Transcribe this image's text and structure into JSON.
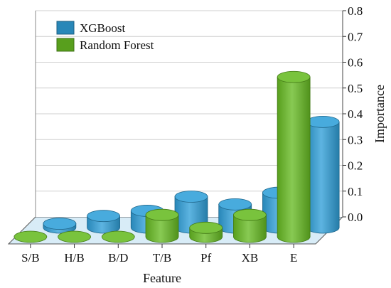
{
  "chart_data": {
    "type": "bar",
    "style": "3d-cylinder",
    "categories": [
      "S/B",
      "H/B",
      "B/D",
      "T/B",
      "Pf",
      "XB",
      "E"
    ],
    "series": [
      {
        "name": "XGBoost",
        "values": [
          0.015,
          0.045,
          0.065,
          0.12,
          0.09,
          0.135,
          0.41
        ],
        "color": "#2f9fd8"
      },
      {
        "name": "Random Forest",
        "values": [
          0.0,
          0.0,
          0.0,
          0.085,
          0.035,
          0.085,
          0.62
        ],
        "color": "#67bb22"
      }
    ],
    "xlabel": "Feature",
    "ylabel": "Importance",
    "ylim": [
      0,
      0.8
    ],
    "yticks": [
      "0.0",
      "0.1",
      "0.2",
      "0.3",
      "0.4",
      "0.5",
      "0.6",
      "0.7",
      "0.8"
    ],
    "grid": true,
    "legend_position": "top-left",
    "colors": {
      "floor": "#d8ecf7",
      "wall": "#ffffff",
      "grid": "#cfcfcf"
    }
  }
}
